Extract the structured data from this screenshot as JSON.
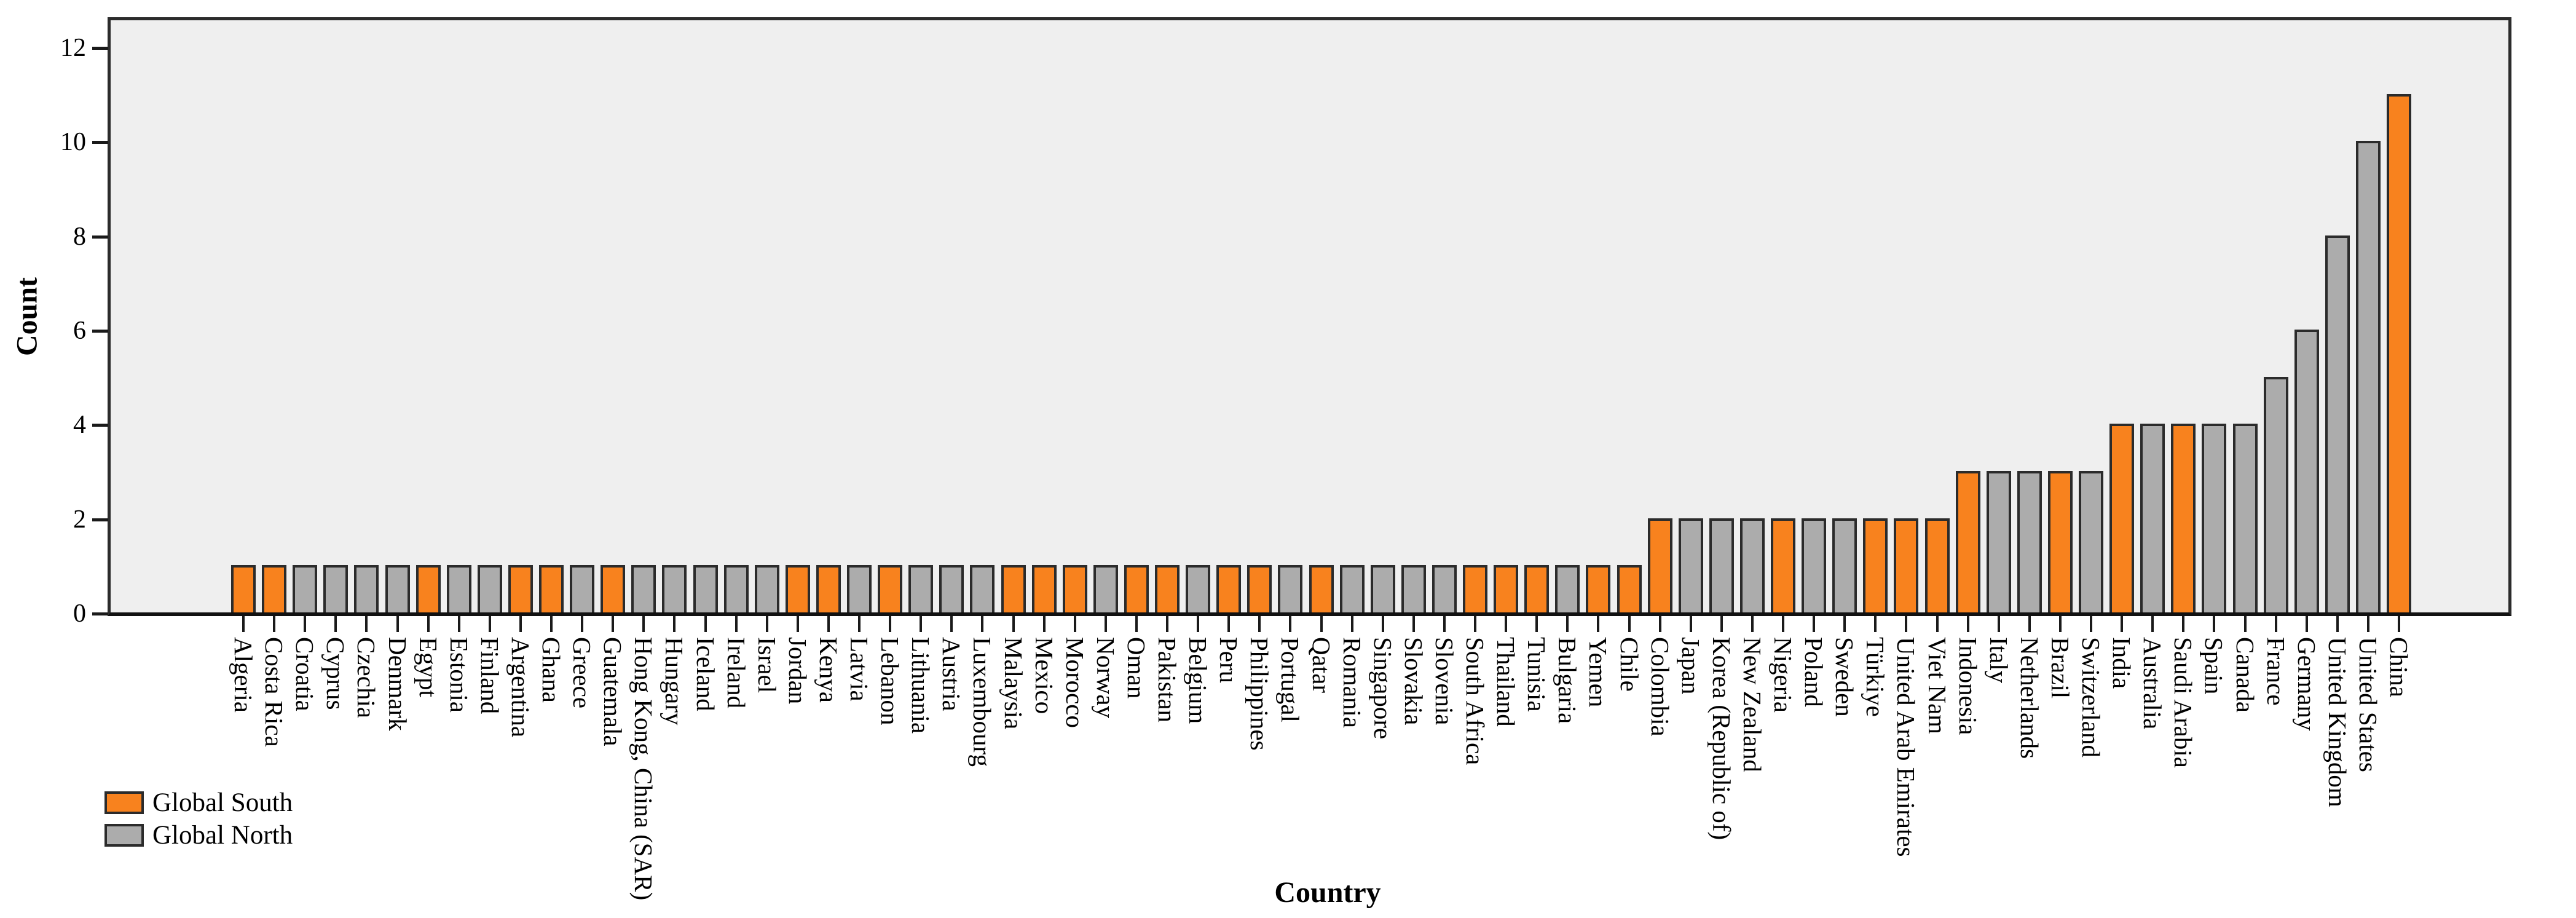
{
  "chart_data": {
    "type": "bar",
    "title": "",
    "xlabel": "Country",
    "ylabel": "Count",
    "ylim": [
      0,
      12.7
    ],
    "yticks": [
      0,
      2,
      4,
      6,
      8,
      10,
      12
    ],
    "grid": false,
    "plot_background": "#efefef",
    "legend_position": "bottom-left",
    "legend": [
      {
        "key": "S",
        "label": "Global South",
        "color": "#F8821E"
      },
      {
        "key": "N",
        "label": "Global North",
        "color": "#ACACAC"
      }
    ],
    "bar_border_color": "#2b2b2b",
    "categories": [
      "Algeria",
      "Costa Rica",
      "Croatia",
      "Cyprus",
      "Czechia",
      "Denmark",
      "Egypt",
      "Estonia",
      "Finland",
      "Argentina",
      "Ghana",
      "Greece",
      "Guatemala",
      "Hong Kong, China (SAR)",
      "Hungary",
      "Iceland",
      "Ireland",
      "Israel",
      "Jordan",
      "Kenya",
      "Latvia",
      "Lebanon",
      "Lithuania",
      "Austria",
      "Luxembourg",
      "Malaysia",
      "Mexico",
      "Morocco",
      "Norway",
      "Oman",
      "Pakistan",
      "Belgium",
      "Peru",
      "Philippines",
      "Portugal",
      "Qatar",
      "Romania",
      "Singapore",
      "Slovakia",
      "Slovenia",
      "South Africa",
      "Thailand",
      "Tunisia",
      "Bulgaria",
      "Yemen",
      "Chile",
      "Colombia",
      "Japan",
      "Korea (Republic of)",
      "New Zealand",
      "Nigeria",
      "Poland",
      "Sweden",
      "Türkiye",
      "United Arab Emirates",
      "Viet Nam",
      "Indonesia",
      "Italy",
      "Netherlands",
      "Brazil",
      "Switzerland",
      "India",
      "Australia",
      "Saudi Arabia",
      "Spain",
      "Canada",
      "France",
      "Germany",
      "United Kingdom",
      "United States",
      "China"
    ],
    "values": [
      1,
      1,
      1,
      1,
      1,
      1,
      1,
      1,
      1,
      1,
      1,
      1,
      1,
      1,
      1,
      1,
      1,
      1,
      1,
      1,
      1,
      1,
      1,
      1,
      1,
      1,
      1,
      1,
      1,
      1,
      1,
      1,
      1,
      1,
      1,
      1,
      1,
      1,
      1,
      1,
      1,
      1,
      1,
      1,
      1,
      1,
      2,
      2,
      2,
      2,
      2,
      2,
      2,
      2,
      2,
      2,
      3,
      3,
      3,
      3,
      3,
      4,
      4,
      4,
      4,
      4,
      5,
      6,
      8,
      10,
      11
    ],
    "groups": [
      "S",
      "S",
      "N",
      "N",
      "N",
      "N",
      "S",
      "N",
      "N",
      "S",
      "S",
      "N",
      "S",
      "N",
      "N",
      "N",
      "N",
      "N",
      "S",
      "S",
      "N",
      "S",
      "N",
      "N",
      "N",
      "S",
      "S",
      "S",
      "N",
      "S",
      "S",
      "N",
      "S",
      "S",
      "N",
      "S",
      "N",
      "N",
      "N",
      "N",
      "S",
      "S",
      "S",
      "N",
      "S",
      "S",
      "S",
      "N",
      "N",
      "N",
      "S",
      "N",
      "N",
      "S",
      "S",
      "S",
      "S",
      "N",
      "N",
      "S",
      "N",
      "S",
      "N",
      "S",
      "N",
      "N",
      "N",
      "N",
      "N",
      "N",
      "S"
    ]
  }
}
